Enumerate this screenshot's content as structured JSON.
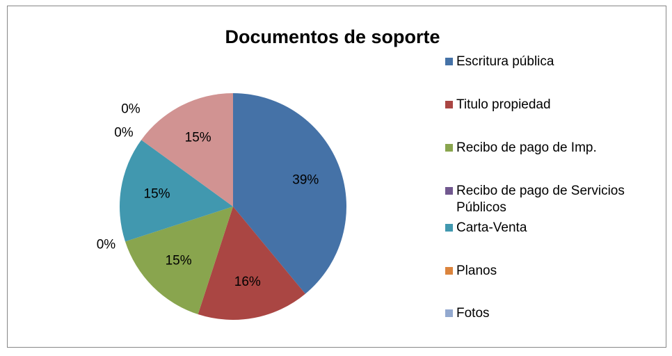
{
  "chart_data": {
    "type": "pie",
    "title": "Documentos de soporte",
    "categories": [
      "Escritura pública",
      "Titulo propiedad",
      "Recibo de pago de Imp.",
      "Recibo de pago de Servicios Públicos",
      "Carta-Venta",
      "Planos",
      "Fotos",
      null
    ],
    "values": [
      39,
      16,
      15,
      0,
      15,
      0,
      0,
      15
    ],
    "value_labels": [
      "39%",
      "16%",
      "15%",
      "0%",
      "15%",
      "0%",
      "0%",
      "15%"
    ],
    "colors": [
      "#4572a7",
      "#aa4643",
      "#89a54e",
      "#71588f",
      "#4198af",
      "#db843d",
      "#93a9cf",
      "#d19392"
    ],
    "legend": "right"
  }
}
